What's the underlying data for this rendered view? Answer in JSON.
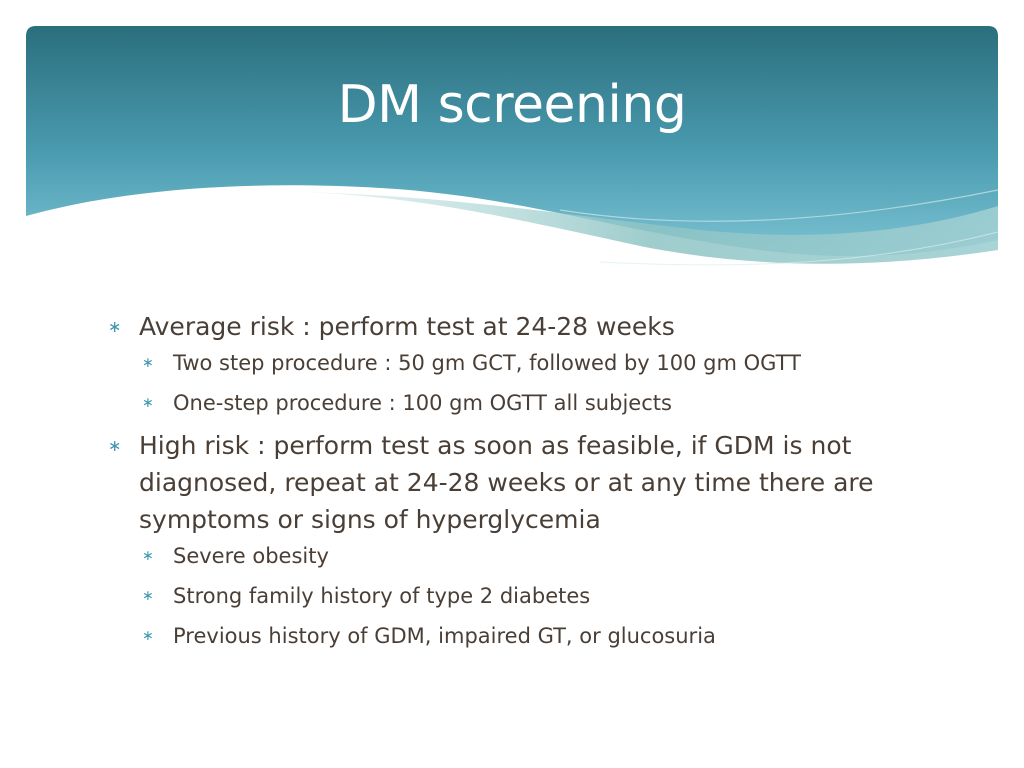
{
  "slide": {
    "title": "DM screening",
    "colors": {
      "header_dark": "#2b6e7d",
      "header_light": "#6cb8cc",
      "wave_teal": "#8ec4c4",
      "bullet_marker": "#3f96b0",
      "body_text": "#4a3f36"
    },
    "bullets": [
      {
        "text": "Average risk : perform test at 24-28 weeks",
        "sub": [
          "Two step procedure : 50 gm GCT, followed by 100 gm OGTT",
          "One-step procedure : 100 gm OGTT all subjects"
        ]
      },
      {
        "text": "High risk : perform test as soon as feasible, if GDM is not diagnosed, repeat at 24-28 weeks or at any time there are symptoms or signs of hyperglycemia",
        "sub": [
          "Severe obesity",
          "Strong family history of type 2 diabetes",
          "Previous history of GDM, impaired GT, or glucosuria"
        ]
      }
    ],
    "marker_glyph": "∗"
  }
}
